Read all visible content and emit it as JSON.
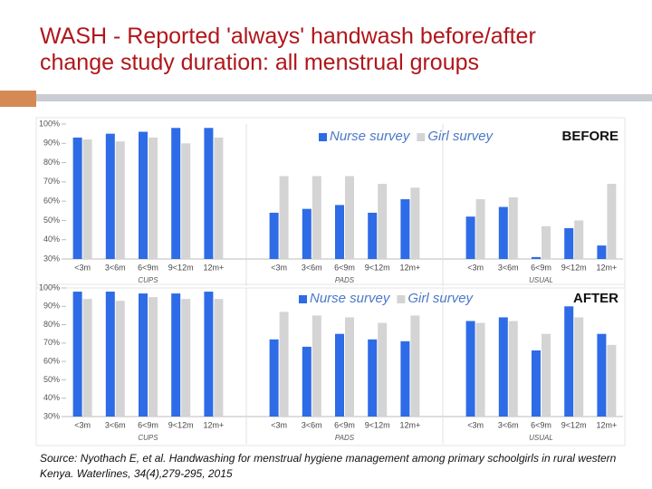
{
  "title": "WASH - Reported 'always' handwash before/after change study duration: all menstrual groups",
  "source": "Source: Nyothach E, et al. Handwashing for menstrual hygiene management among primary schoolgirls in rural western Kenya. Waterlines, 34(4),279-295, 2015",
  "chart_data": [
    {
      "type": "bar",
      "label": "BEFORE",
      "categories": [
        "<3m",
        "3<6m",
        "6<9m",
        "9<12m",
        "12m+",
        "<3m",
        "3<6m",
        "6<9m",
        "9<12m",
        "12m+",
        "<3m",
        "3<6m",
        "6<9m",
        "9<12m",
        "12m+"
      ],
      "groups": [
        "CUPS",
        "PADS",
        "USUAL"
      ],
      "series": [
        {
          "name": "Nurse survey",
          "color": "#2e6be6",
          "values": [
            93,
            95,
            96,
            98,
            98,
            54,
            56,
            58,
            54,
            61,
            52,
            57,
            31,
            46,
            37
          ]
        },
        {
          "name": "Girl survey",
          "color": "#d4d4d4",
          "values": [
            92,
            91,
            93,
            90,
            93,
            73,
            73,
            73,
            69,
            67,
            61,
            62,
            47,
            50,
            69
          ]
        }
      ],
      "ylim": [
        30,
        100
      ],
      "yticks": [
        {
          "value": 30,
          "label": "30%"
        },
        {
          "value": 40,
          "label": "40%"
        },
        {
          "value": 50,
          "label": "50%"
        },
        {
          "value": 60,
          "label": "60%"
        },
        {
          "value": 70,
          "label": "70%"
        },
        {
          "value": 80,
          "label": "80%"
        },
        {
          "value": 90,
          "label": "90%"
        },
        {
          "value": 100,
          "label": "100%"
        }
      ]
    },
    {
      "type": "bar",
      "label": "AFTER",
      "categories": [
        "<3m",
        "3<6m",
        "6<9m",
        "9<12m",
        "12m+",
        "<3m",
        "3<6m",
        "6<9m",
        "9<12m",
        "12m+",
        "<3m",
        "3<6m",
        "6<9m",
        "9<12m",
        "12m+"
      ],
      "groups": [
        "CUPS",
        "PADS",
        "USUAL"
      ],
      "series": [
        {
          "name": "Nurse survey",
          "color": "#2e6be6",
          "values": [
            98,
            98,
            97,
            97,
            98,
            72,
            68,
            75,
            72,
            71,
            82,
            84,
            66,
            90,
            75
          ]
        },
        {
          "name": "Girl survey",
          "color": "#d4d4d4",
          "values": [
            94,
            93,
            95,
            94,
            94,
            87,
            85,
            84,
            81,
            85,
            81,
            82,
            75,
            84,
            69
          ]
        }
      ],
      "ylim": [
        30,
        100
      ],
      "yticks": [
        {
          "value": 30,
          "label": "30%"
        },
        {
          "value": 40,
          "label": "40%"
        },
        {
          "value": 50,
          "label": "50%"
        },
        {
          "value": 60,
          "label": "60%"
        },
        {
          "value": 70,
          "label": "70%"
        },
        {
          "value": 80,
          "label": "80%"
        },
        {
          "value": 90,
          "label": "90%"
        },
        {
          "value": 100,
          "label": "100%"
        }
      ]
    }
  ]
}
